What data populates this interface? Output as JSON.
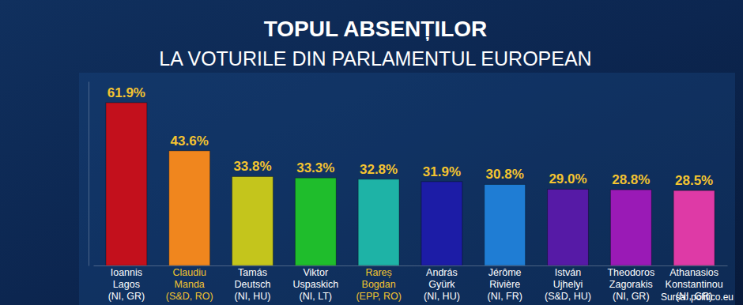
{
  "chart_data": {
    "type": "bar",
    "title": "TOPUL ABSENȚILOR",
    "subtitle": "LA VOTURILE DIN PARLAMENTUL EUROPEAN",
    "annotations": [
      "Sursa: politico.eu"
    ],
    "categories": [
      "Ioannis\nLagos\n(NI, GR)",
      "Claudiu\nManda\n(S&D, RO)",
      "Tamás\nDeutsch\n(NI, HU)",
      "Viktor\nUspaskich\n(NI, LT)",
      "Rareș\nBogdan\n(EPP, RO)",
      "András\nGyürk\n(NI, HU)",
      "Jérôme\nRivière\n(NI, FR)",
      "István\nUjhelyi\n(S&D, HU)",
      "Theodoros\nZagorakis\n(NI, GR)",
      "Athanasios\nKonstantinou\n(NI, GR)"
    ],
    "values": [
      61.9,
      43.6,
      33.8,
      33.3,
      32.8,
      31.9,
      30.8,
      29.0,
      28.8,
      28.5
    ],
    "value_labels": [
      "61.9%",
      "43.6%",
      "33.8%",
      "33.3%",
      "32.8%",
      "31.9%",
      "30.8%",
      "29.0%",
      "28.8%",
      "28.5%"
    ],
    "colors": [
      "#c3101c",
      "#f0861e",
      "#c4c51c",
      "#1fbd2c",
      "#1eb3a6",
      "#1c1ca6",
      "#1f7dd4",
      "#561aa6",
      "#9a1ab6",
      "#de3aa6"
    ],
    "ylim": [
      0,
      70
    ],
    "data_labels": true,
    "tick_labels": "x"
  }
}
